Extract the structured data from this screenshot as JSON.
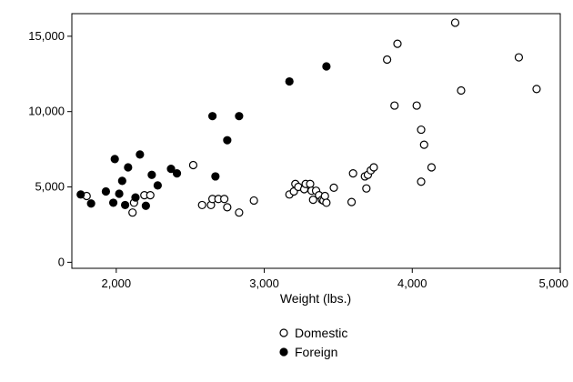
{
  "chart_data": {
    "type": "scatter",
    "title": "",
    "xlabel": "Weight (lbs.)",
    "ylabel": "",
    "xlim": [
      1700,
      5000
    ],
    "ylim": [
      -400,
      16500
    ],
    "xticks": [
      2000,
      3000,
      4000,
      5000
    ],
    "xtick_labels": [
      "2,000",
      "3,000",
      "4,000",
      "5,000"
    ],
    "yticks": [
      0,
      5000,
      10000,
      15000
    ],
    "ytick_labels": [
      "0",
      "5,000",
      "10,000",
      "15,000"
    ],
    "grid": false,
    "legend_position": "bottom",
    "series": [
      {
        "name": "Domestic",
        "marker": "hollow-circle",
        "color": "#000000",
        "points": [
          [
            1800,
            4400
          ],
          [
            2110,
            3300
          ],
          [
            2120,
            3950
          ],
          [
            2190,
            4450
          ],
          [
            2230,
            4450
          ],
          [
            2520,
            6450
          ],
          [
            2580,
            3800
          ],
          [
            2640,
            3800
          ],
          [
            2650,
            4200
          ],
          [
            2690,
            4200
          ],
          [
            2730,
            4200
          ],
          [
            2750,
            3650
          ],
          [
            2830,
            3300
          ],
          [
            2930,
            4100
          ],
          [
            3170,
            4500
          ],
          [
            3200,
            4700
          ],
          [
            3210,
            5200
          ],
          [
            3230,
            5000
          ],
          [
            3270,
            4850
          ],
          [
            3280,
            5200
          ],
          [
            3310,
            5200
          ],
          [
            3320,
            4750
          ],
          [
            3330,
            4150
          ],
          [
            3350,
            4750
          ],
          [
            3370,
            4450
          ],
          [
            3390,
            4150
          ],
          [
            3400,
            4100
          ],
          [
            3410,
            4400
          ],
          [
            3420,
            3950
          ],
          [
            3470,
            4950
          ],
          [
            3590,
            4000
          ],
          [
            3600,
            5900
          ],
          [
            3680,
            5700
          ],
          [
            3690,
            4900
          ],
          [
            3700,
            5800
          ],
          [
            3720,
            6100
          ],
          [
            3740,
            6300
          ],
          [
            3830,
            13450
          ],
          [
            3880,
            10400
          ],
          [
            3900,
            14500
          ],
          [
            4030,
            10400
          ],
          [
            4060,
            8800
          ],
          [
            4060,
            5350
          ],
          [
            4080,
            7800
          ],
          [
            4130,
            6300
          ],
          [
            4290,
            15900
          ],
          [
            4330,
            11400
          ],
          [
            4720,
            13600
          ],
          [
            4840,
            11500
          ]
        ]
      },
      {
        "name": "Foreign",
        "marker": "filled-circle",
        "color": "#000000",
        "points": [
          [
            1760,
            4500
          ],
          [
            1830,
            3900
          ],
          [
            1930,
            4700
          ],
          [
            1980,
            3950
          ],
          [
            1990,
            6850
          ],
          [
            2020,
            4550
          ],
          [
            2040,
            5400
          ],
          [
            2060,
            3800
          ],
          [
            2080,
            6300
          ],
          [
            2130,
            4300
          ],
          [
            2160,
            7150
          ],
          [
            2200,
            3750
          ],
          [
            2240,
            5800
          ],
          [
            2280,
            5100
          ],
          [
            2370,
            6200
          ],
          [
            2410,
            5900
          ],
          [
            2650,
            9700
          ],
          [
            2670,
            5700
          ],
          [
            2750,
            8100
          ],
          [
            2830,
            9700
          ],
          [
            3170,
            12000
          ],
          [
            3420,
            13000
          ]
        ]
      }
    ]
  }
}
